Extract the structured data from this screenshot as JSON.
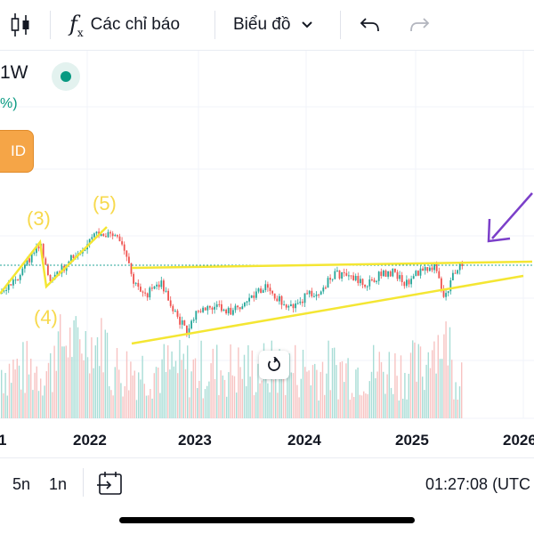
{
  "toolbar": {
    "candle_icon": "candlestick-icon",
    "indicators_label": "Các chỉ báo",
    "chart_label": "Biểu đồ",
    "undo_icon": "undo-icon",
    "redo_icon": "redo-icon"
  },
  "legend": {
    "interval": "1W",
    "change_partial": "%)",
    "order_button_partial": "ID"
  },
  "annotations": {
    "wave_labels": [
      "(3)",
      "(4)",
      "(5)"
    ],
    "label_color": "#f7d94c",
    "line_color": "#f4e633",
    "arrow_color": "#7b3fc9"
  },
  "chart_data": {
    "type": "candlestick",
    "x_ticks": [
      "1",
      "2022",
      "2023",
      "2024",
      "2025",
      "2026"
    ],
    "up_color": "#26a69a",
    "down_color": "#ef5350",
    "grid": true
  },
  "bottom_bar": {
    "range_5d": "5n",
    "range_1d": "1n",
    "clock": "01:27:08 (UTC"
  }
}
